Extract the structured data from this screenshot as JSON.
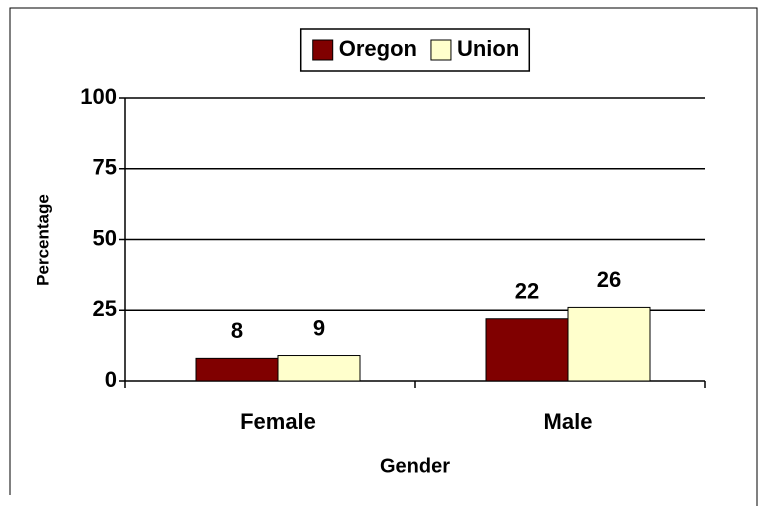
{
  "chart_data": {
    "type": "bar",
    "categories": [
      "Female",
      "Male"
    ],
    "series": [
      {
        "name": "Oregon",
        "color": "#800000",
        "values": [
          8,
          22
        ]
      },
      {
        "name": "Union",
        "color": "#ffffcc",
        "values": [
          9,
          26
        ]
      }
    ],
    "x_label": "Gender",
    "y_label": "Percentage",
    "ylim": [
      0,
      100
    ],
    "yticks": [
      0,
      25,
      50,
      75,
      100
    ],
    "grid": true,
    "legend": "top"
  }
}
